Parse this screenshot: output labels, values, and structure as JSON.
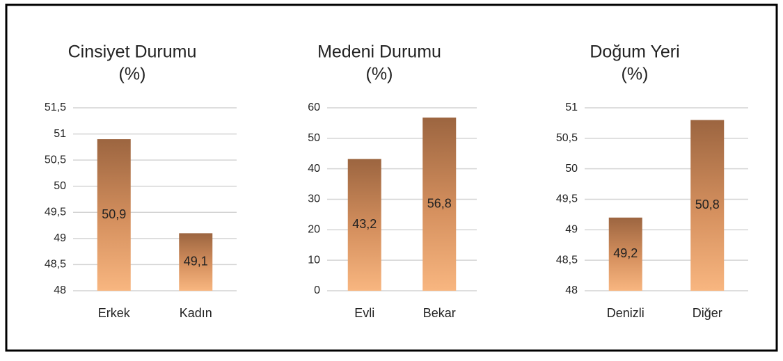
{
  "chart_data": [
    {
      "type": "bar",
      "title": "Cinsiyet Durumu",
      "subtitle": "(%)",
      "categories": [
        "Erkek",
        "Kadın"
      ],
      "values": [
        50.9,
        49.1
      ],
      "value_labels": [
        "50,9",
        "49,1"
      ],
      "ylim": [
        48,
        51.5
      ],
      "yticks": [
        48,
        {
          "value": 48.5,
          "label": "48,5"
        },
        49,
        {
          "value": 49.5,
          "label": "49,5"
        },
        50,
        {
          "value": 50.5,
          "label": "50,5"
        },
        51,
        {
          "value": 51.5,
          "label": "51,5"
        }
      ],
      "grid": true
    },
    {
      "type": "bar",
      "title": "Medeni  Durumu",
      "subtitle": "(%)",
      "categories": [
        "Evli",
        "Bekar"
      ],
      "values": [
        43.2,
        56.8
      ],
      "value_labels": [
        "43,2",
        "56,8"
      ],
      "ylim": [
        0,
        60
      ],
      "yticks": [
        0,
        10,
        20,
        30,
        40,
        50,
        60
      ],
      "grid": true
    },
    {
      "type": "bar",
      "title": "Doğum Yeri",
      "subtitle": "(%)",
      "categories": [
        "Denizli",
        "Diğer"
      ],
      "values": [
        49.2,
        50.8
      ],
      "value_labels": [
        "49,2",
        "50,8"
      ],
      "ylim": [
        48,
        51
      ],
      "yticks": [
        48,
        {
          "value": 48.5,
          "label": "48,5"
        },
        49,
        {
          "value": 49.5,
          "label": "49,5"
        },
        50,
        {
          "value": 50.5,
          "label": "50,5"
        },
        51
      ],
      "grid": true
    }
  ]
}
